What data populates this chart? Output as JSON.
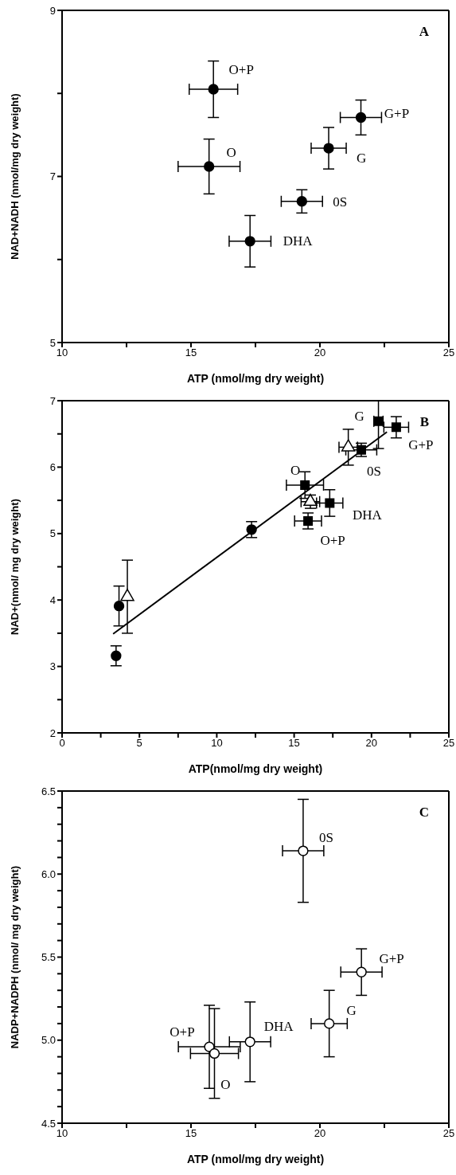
{
  "chart_data": [
    {
      "type": "scatter",
      "title": "A",
      "xlabel": "ATP (nmol/mg dry weight)",
      "ylabel": "NAD+NADH (nmol/mg dry weight)",
      "xlim": [
        10,
        25
      ],
      "ylim": [
        5,
        9
      ],
      "xticks": [
        10,
        {
          "value": 12.5,
          "label": null
        },
        15,
        {
          "value": 17.5,
          "label": null
        },
        20,
        {
          "value": 22.5,
          "label": null
        },
        25
      ],
      "yticks": [
        5,
        {
          "value": 6,
          "label": null
        },
        7,
        {
          "value": 8,
          "label": null
        },
        9
      ],
      "series": [
        {
          "color": "#000000",
          "marker": "circle",
          "x": [
            15.87,
            15.7,
            21.59,
            20.34,
            19.3,
            17.29
          ],
          "values": [
            8.05,
            7.12,
            7.71,
            7.34,
            6.7,
            6.22
          ],
          "errors": [
            0.34,
            0.33,
            0.21,
            0.25,
            0.14,
            0.31
          ],
          "xerrors": [
            0.94,
            1.2,
            0.8,
            0.68,
            0.8,
            0.81
          ]
        }
      ],
      "annotations": [
        {
          "text": "O+P",
          "x": 15.87,
          "y": 8.05
        },
        {
          "text": "O",
          "x": 15.7,
          "y": 7.12
        },
        {
          "text": "G+P",
          "x": 21.59,
          "y": 7.71
        },
        {
          "text": "G",
          "x": 20.34,
          "y": 7.34
        },
        {
          "text": "0S",
          "x": 19.3,
          "y": 6.7
        },
        {
          "text": "DHA",
          "x": 17.29,
          "y": 6.22
        }
      ]
    },
    {
      "type": "scatter",
      "title": "B",
      "xlabel": "ATP(nmol/mg dry weight)",
      "ylabel": "NAD+(nmol/ mg dry weight)",
      "xlim": [
        0,
        25
      ],
      "ylim": [
        2,
        7
      ],
      "xticks": [
        0,
        {
          "value": 2.5,
          "label": null
        },
        5,
        {
          "value": 7.5,
          "label": null
        },
        10,
        {
          "value": 12.5,
          "label": null
        },
        15,
        {
          "value": 17.5,
          "label": null
        },
        20,
        {
          "value": 22.5,
          "label": null
        },
        25
      ],
      "yticks": [
        2,
        {
          "value": 2.5,
          "label": null
        },
        3,
        {
          "value": 3.5,
          "label": null
        },
        4,
        {
          "value": 4.5,
          "label": null
        },
        5,
        {
          "value": 5.5,
          "label": null
        },
        6,
        {
          "value": 6.5,
          "label": null
        },
        7
      ],
      "series": [
        {
          "color": "#000000",
          "marker": "circle",
          "x": [
            3.49,
            3.68,
            12.25
          ],
          "values": [
            3.16,
            3.91,
            5.06
          ],
          "errors": [
            0.15,
            0.3,
            0.12
          ]
        },
        {
          "color": "#ffffff",
          "marker": "triangle",
          "x": [
            4.22,
            16.05,
            18.5
          ],
          "values": [
            4.05,
            5.48,
            6.3
          ],
          "errors": [
            0.55,
            0.1,
            0.27
          ],
          "xerrors": [
            null,
            0.6,
            0.6
          ]
        },
        {
          "color": "#000000",
          "marker": "square",
          "x": [
            20.45,
            21.6,
            19.34,
            15.7,
            17.3,
            15.9
          ],
          "values": [
            6.69,
            6.6,
            6.26,
            5.73,
            5.46,
            5.19
          ],
          "errors": [
            [
              6.28,
              7.0
            ],
            0.16,
            0.1,
            0.2,
            0.2,
            0.12
          ],
          "xerrors": [
            0.3,
            0.8,
            1.0,
            1.2,
            0.85,
            0.87
          ]
        },
        {
          "type": "line",
          "color": "#000000",
          "marker": "none",
          "x": [
            3.3,
            21.0
          ],
          "values": [
            3.49,
            6.53
          ]
        }
      ],
      "annotations": [
        {
          "text": "G",
          "x": 20.45,
          "y": 6.69
        },
        {
          "text": "G+P",
          "x": 21.6,
          "y": 6.6
        },
        {
          "text": "0S",
          "x": 19.34,
          "y": 6.26
        },
        {
          "text": "O",
          "x": 15.7,
          "y": 5.73
        },
        {
          "text": "DHA",
          "x": 17.3,
          "y": 5.46
        },
        {
          "text": "O+P",
          "x": 15.9,
          "y": 5.19
        }
      ]
    },
    {
      "type": "scatter",
      "title": "C",
      "xlabel": "ATP (nmol/mg dry weight)",
      "ylabel": "NADP+NADPH (nmol/ mg dry weight)",
      "xlim": [
        10,
        25
      ],
      "ylim": [
        4.5,
        6.5
      ],
      "xticks": [
        10,
        {
          "value": 12.5,
          "label": null
        },
        15,
        {
          "value": 17.5,
          "label": null
        },
        20,
        {
          "value": 22.5,
          "label": null
        },
        25
      ],
      "yticks": [
        4.5,
        {
          "value": 4.6,
          "label": null
        },
        {
          "value": 4.7,
          "label": null
        },
        {
          "value": 4.8,
          "label": null
        },
        {
          "value": 4.9,
          "label": null
        },
        {
          "value": 5,
          "label": "5.0"
        },
        {
          "value": 5.1,
          "label": null
        },
        {
          "value": 5.2,
          "label": null
        },
        {
          "value": 5.3,
          "label": null
        },
        {
          "value": 5.4,
          "label": null
        },
        5.5,
        {
          "value": 5.6,
          "label": null
        },
        {
          "value": 5.7,
          "label": null
        },
        {
          "value": 5.8,
          "label": null
        },
        {
          "value": 5.9,
          "label": null
        },
        {
          "value": 6,
          "label": "6.0"
        },
        {
          "value": 6.1,
          "label": null
        },
        {
          "value": 6.2,
          "label": null
        },
        {
          "value": 6.3,
          "label": null
        },
        {
          "value": 6.4,
          "label": null
        },
        6.5
      ],
      "series": [
        {
          "color": "#ffffff",
          "marker": "circle",
          "x": [
            19.35,
            21.61,
            20.36,
            17.29,
            15.71,
            15.91
          ],
          "values": [
            6.14,
            5.41,
            5.1,
            4.99,
            4.96,
            4.92
          ],
          "errors": [
            0.31,
            0.14,
            0.2,
            0.24,
            0.25,
            0.27
          ],
          "xerrors": [
            0.8,
            0.8,
            0.7,
            0.8,
            1.2,
            0.93
          ]
        }
      ],
      "annotations": [
        {
          "text": "0S",
          "x": 19.35,
          "y": 6.14
        },
        {
          "text": "G+P",
          "x": 21.61,
          "y": 5.41
        },
        {
          "text": "G",
          "x": 20.36,
          "y": 5.1
        },
        {
          "text": "DHA",
          "x": 17.29,
          "y": 4.99
        },
        {
          "text": "O+P",
          "x": 15.71,
          "y": 4.96
        },
        {
          "text": "O",
          "x": 15.91,
          "y": 4.92
        }
      ]
    }
  ]
}
